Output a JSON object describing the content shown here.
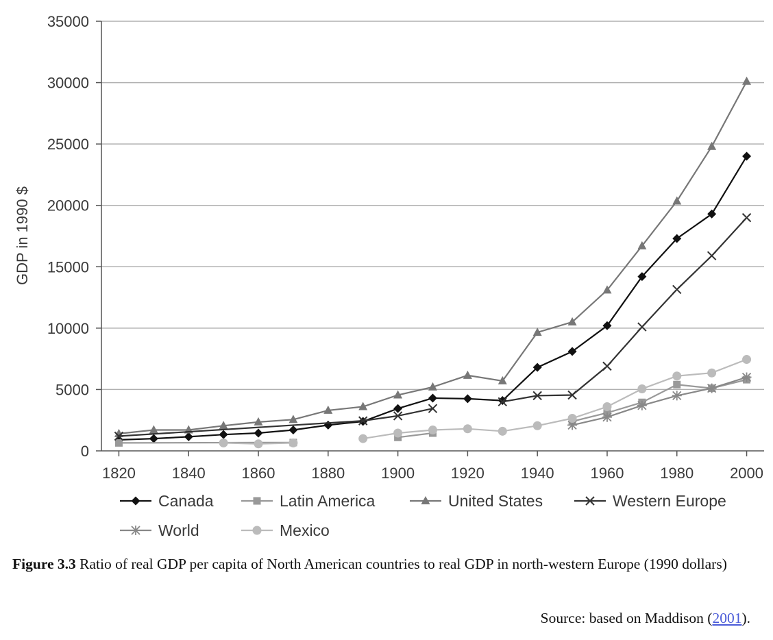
{
  "chart_data": {
    "type": "line",
    "title": "",
    "xlabel": "",
    "ylabel": "GDP in 1990 $",
    "xlim": [
      1815,
      2005
    ],
    "ylim": [
      0,
      35000
    ],
    "x_ticks": [
      1820,
      1840,
      1860,
      1880,
      1900,
      1920,
      1940,
      1960,
      1980,
      2000
    ],
    "y_ticks": [
      0,
      5000,
      10000,
      15000,
      20000,
      25000,
      30000,
      35000
    ],
    "grid": "horizontal",
    "legend_position": "bottom",
    "series": [
      {
        "name": "Canada",
        "color": "#111111",
        "marker": "diamond",
        "points": [
          [
            1820,
            900
          ],
          [
            1830,
            1000
          ],
          [
            1840,
            1150
          ],
          [
            1850,
            1330
          ],
          [
            1860,
            1450
          ],
          [
            1870,
            1700
          ],
          [
            1880,
            2100
          ],
          [
            1890,
            2400
          ],
          [
            1900,
            3450
          ],
          [
            1910,
            4300
          ],
          [
            1920,
            4250
          ],
          [
            1930,
            4100
          ],
          [
            1940,
            6800
          ],
          [
            1950,
            8100
          ],
          [
            1960,
            10200
          ],
          [
            1970,
            14200
          ],
          [
            1980,
            17300
          ],
          [
            1990,
            19300
          ],
          [
            2000,
            24000
          ]
        ]
      },
      {
        "name": "Latin America",
        "color": "#999999",
        "marker": "square",
        "points": [
          [
            1820,
            650
          ],
          [
            1870,
            680
          ],
          null,
          [
            1900,
            1100
          ],
          [
            1910,
            1450
          ],
          null,
          [
            1950,
            2400
          ],
          [
            1960,
            3100
          ],
          [
            1970,
            3950
          ],
          [
            1980,
            5400
          ],
          [
            1990,
            5100
          ],
          [
            2000,
            5800
          ]
        ]
      },
      {
        "name": "United States",
        "color": "#777777",
        "marker": "triangle",
        "points": [
          [
            1820,
            1400
          ],
          [
            1830,
            1700
          ],
          [
            1840,
            1700
          ],
          [
            1850,
            2050
          ],
          [
            1860,
            2350
          ],
          [
            1870,
            2550
          ],
          [
            1880,
            3300
          ],
          [
            1890,
            3600
          ],
          [
            1900,
            4550
          ],
          [
            1910,
            5200
          ],
          [
            1920,
            6150
          ],
          [
            1930,
            5700
          ],
          [
            1940,
            9650
          ],
          [
            1950,
            10500
          ],
          [
            1960,
            13100
          ],
          [
            1970,
            16700
          ],
          [
            1980,
            20350
          ],
          [
            1990,
            24800
          ],
          [
            2000,
            30100
          ]
        ]
      },
      {
        "name": "Western Europe",
        "color": "#333333",
        "marker": "x",
        "points": [
          [
            1820,
            1200
          ],
          [
            1890,
            2450
          ],
          [
            1900,
            2850
          ],
          [
            1910,
            3450
          ],
          null,
          [
            1930,
            4000
          ],
          [
            1940,
            4500
          ],
          [
            1950,
            4550
          ],
          [
            1960,
            6900
          ],
          [
            1970,
            10100
          ],
          [
            1980,
            13150
          ],
          [
            1990,
            15900
          ],
          [
            2000,
            19000
          ]
        ]
      },
      {
        "name": "World",
        "color": "#888888",
        "marker": "star",
        "points": [
          [
            1950,
            2100
          ],
          [
            1960,
            2750
          ],
          [
            1970,
            3700
          ],
          [
            1980,
            4500
          ],
          [
            1990,
            5100
          ],
          [
            2000,
            6000
          ]
        ]
      },
      {
        "name": "Mexico",
        "color": "#bbbbbb",
        "marker": "circle",
        "points": [
          [
            1850,
            650
          ],
          [
            1860,
            570
          ],
          [
            1870,
            650
          ],
          null,
          [
            1890,
            1000
          ],
          [
            1900,
            1450
          ],
          [
            1910,
            1700
          ],
          [
            1920,
            1800
          ],
          [
            1930,
            1600
          ],
          [
            1940,
            2050
          ],
          [
            1950,
            2650
          ],
          [
            1960,
            3600
          ],
          [
            1970,
            5050
          ],
          [
            1980,
            6100
          ],
          [
            1990,
            6350
          ],
          [
            2000,
            7450
          ]
        ]
      }
    ]
  },
  "caption": {
    "label": "Figure 3.3",
    "text": " Ratio of real GDP per capita of North American countries to real GDP in north-western Europe (1990 dollars)"
  },
  "source": {
    "prefix": "Source: based on Maddison (",
    "link_text": "2001",
    "suffix": ")."
  }
}
